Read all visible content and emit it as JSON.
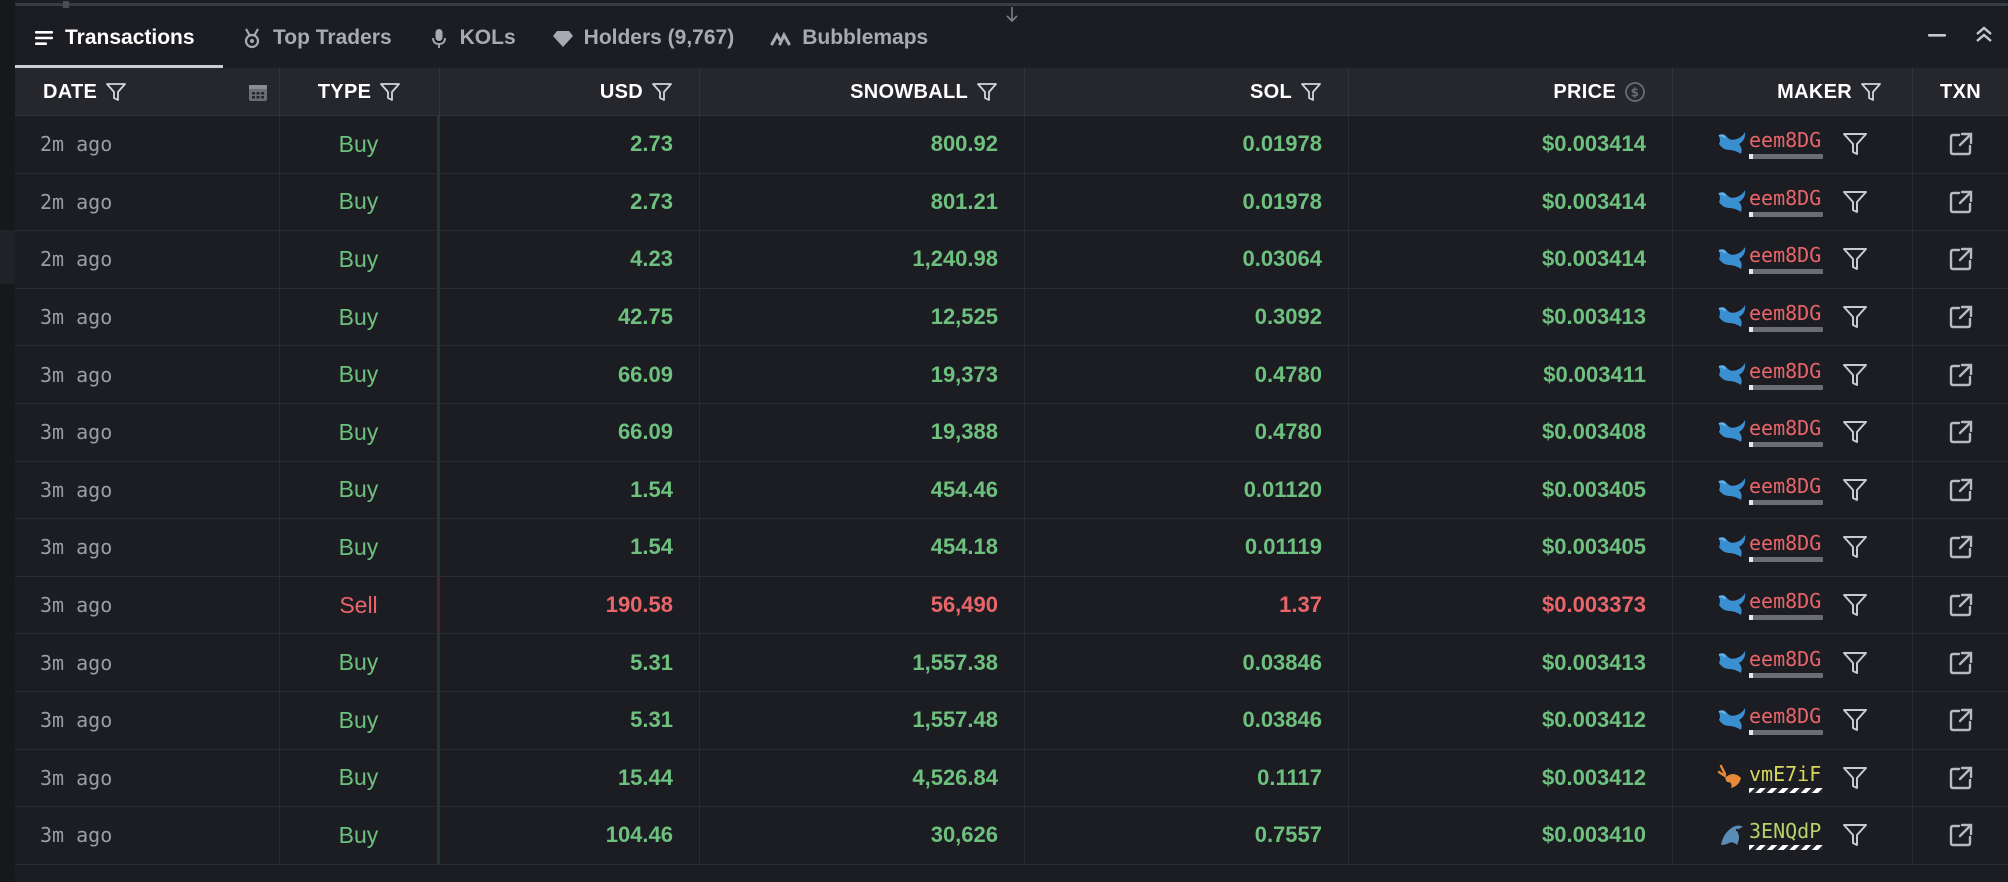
{
  "tabs": [
    {
      "label": "Transactions",
      "icon": "list-icon",
      "active": true
    },
    {
      "label": "Top Traders",
      "icon": "medal-icon",
      "active": false
    },
    {
      "label": "KOLs",
      "icon": "microphone-icon",
      "active": false
    },
    {
      "label": "Holders (9,767)",
      "icon": "diamond-icon",
      "active": false
    },
    {
      "label": "Bubblemaps",
      "icon": "bubblemaps-icon",
      "active": false
    }
  ],
  "columns": {
    "date": "DATE",
    "type": "TYPE",
    "usd": "USD",
    "snowball": "SNOWBALL",
    "sol": "SOL",
    "price": "PRICE",
    "maker": "MAKER",
    "txn": "TXN"
  },
  "colors": {
    "buy": "#6ec07e",
    "sell": "#e8656a",
    "background": "#1c1d22",
    "header": "#26272d"
  },
  "rows": [
    {
      "date": "2m ago",
      "type": "Buy",
      "usd": "2.73",
      "snowball": "800.92",
      "sol": "0.01978",
      "price": "$0.003414",
      "maker": "eem8DG",
      "maker_icon": "whale-icon"
    },
    {
      "date": "2m ago",
      "type": "Buy",
      "usd": "2.73",
      "snowball": "801.21",
      "sol": "0.01978",
      "price": "$0.003414",
      "maker": "eem8DG",
      "maker_icon": "whale-icon"
    },
    {
      "date": "2m ago",
      "type": "Buy",
      "usd": "4.23",
      "snowball": "1,240.98",
      "sol": "0.03064",
      "price": "$0.003414",
      "maker": "eem8DG",
      "maker_icon": "whale-icon"
    },
    {
      "date": "3m ago",
      "type": "Buy",
      "usd": "42.75",
      "snowball": "12,525",
      "sol": "0.3092",
      "price": "$0.003413",
      "maker": "eem8DG",
      "maker_icon": "whale-icon"
    },
    {
      "date": "3m ago",
      "type": "Buy",
      "usd": "66.09",
      "snowball": "19,373",
      "sol": "0.4780",
      "price": "$0.003411",
      "maker": "eem8DG",
      "maker_icon": "whale-icon"
    },
    {
      "date": "3m ago",
      "type": "Buy",
      "usd": "66.09",
      "snowball": "19,388",
      "sol": "0.4780",
      "price": "$0.003408",
      "maker": "eem8DG",
      "maker_icon": "whale-icon"
    },
    {
      "date": "3m ago",
      "type": "Buy",
      "usd": "1.54",
      "snowball": "454.46",
      "sol": "0.01120",
      "price": "$0.003405",
      "maker": "eem8DG",
      "maker_icon": "whale-icon"
    },
    {
      "date": "3m ago",
      "type": "Buy",
      "usd": "1.54",
      "snowball": "454.18",
      "sol": "0.01119",
      "price": "$0.003405",
      "maker": "eem8DG",
      "maker_icon": "whale-icon"
    },
    {
      "date": "3m ago",
      "type": "Sell",
      "usd": "190.58",
      "snowball": "56,490",
      "sol": "1.37",
      "price": "$0.003373",
      "maker": "eem8DG",
      "maker_icon": "whale-icon"
    },
    {
      "date": "3m ago",
      "type": "Buy",
      "usd": "5.31",
      "snowball": "1,557.38",
      "sol": "0.03846",
      "price": "$0.003413",
      "maker": "eem8DG",
      "maker_icon": "whale-icon"
    },
    {
      "date": "3m ago",
      "type": "Buy",
      "usd": "5.31",
      "snowball": "1,557.48",
      "sol": "0.03846",
      "price": "$0.003412",
      "maker": "eem8DG",
      "maker_icon": "whale-icon"
    },
    {
      "date": "3m ago",
      "type": "Buy",
      "usd": "15.44",
      "snowball": "4,526.84",
      "sol": "0.1117",
      "price": "$0.003412",
      "maker": "vmE7iF",
      "maker_icon": "shrimp-icon"
    },
    {
      "date": "3m ago",
      "type": "Buy",
      "usd": "104.46",
      "snowball": "30,626",
      "sol": "0.7557",
      "price": "$0.003410",
      "maker": "3ENQdP",
      "maker_icon": "dolphin-icon"
    }
  ]
}
